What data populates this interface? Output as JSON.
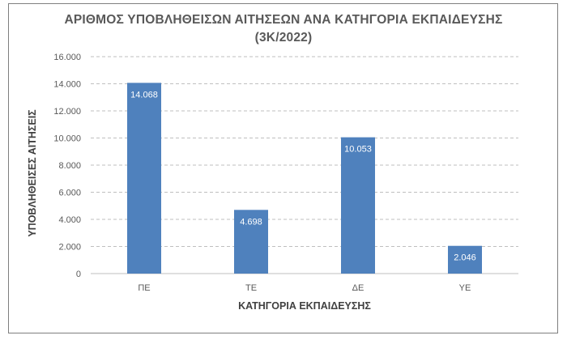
{
  "chart_data": {
    "type": "bar",
    "title_line1": "ΑΡΙΘΜΟΣ ΥΠΟΒΛΗΘΕΙΣΩΝ ΑΙΤΗΣΕΩΝ ΑΝΑ ΚΑΤΗΓΟΡΙΑ ΕΚΠΑΙΔΕΥΣΗΣ",
    "title_line2": "(3Κ/2022)",
    "xlabel": "ΚΑΤΗΓΟΡΙΑ ΕΚΠΑΙΔΕΥΣΗΣ",
    "ylabel": "ΥΠΟΒΛΗΘΕΙΣΕΣ ΑΙΤΗΣΕΙΣ",
    "categories": [
      "ΠΕ",
      "ΤΕ",
      "ΔΕ",
      "ΥΕ"
    ],
    "values": [
      14068,
      4698,
      10053,
      2046
    ],
    "value_labels": [
      "14.068",
      "4.698",
      "10.053",
      "2.046"
    ],
    "ylim": [
      0,
      16000
    ],
    "yticks": [
      0,
      2000,
      4000,
      6000,
      8000,
      10000,
      12000,
      14000,
      16000
    ],
    "ytick_labels": [
      "0",
      "2.000",
      "4.000",
      "6.000",
      "8.000",
      "10.000",
      "12.000",
      "14.000",
      "16.000"
    ],
    "grid": true,
    "bar_color": "#4f81bd",
    "grid_color": "#bfbfbf"
  }
}
